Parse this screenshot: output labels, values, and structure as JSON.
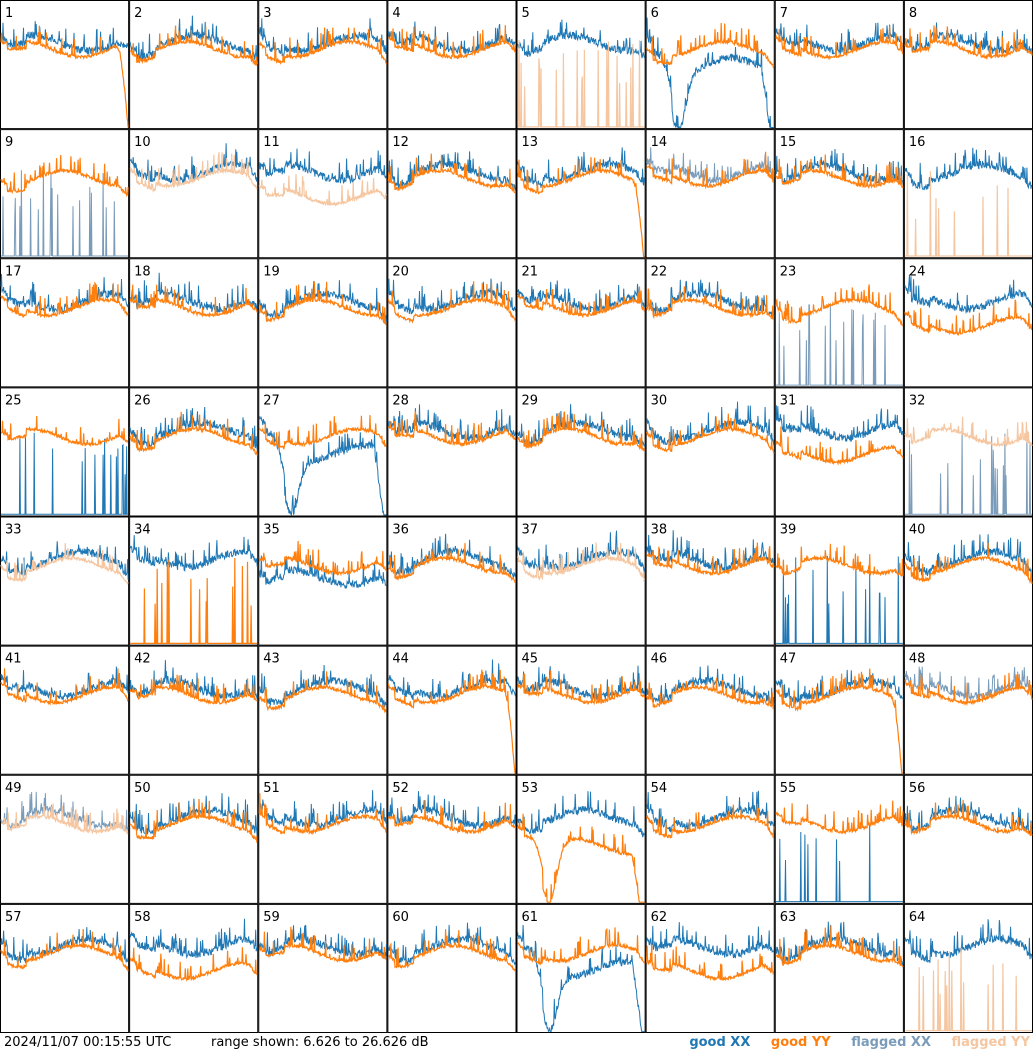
{
  "footer": {
    "timestamp": "2024/11/07 00:15:55 UTC",
    "range": "range shown: 6.626 to 26.626 dB"
  },
  "legend": [
    {
      "label": "good XX",
      "color": "#1f77b4"
    },
    {
      "label": "good YY",
      "color": "#ff7f0e"
    },
    {
      "label": "flagged XX",
      "color": "#7a9cba"
    },
    {
      "label": "flagged YY",
      "color": "#f5c6a0"
    }
  ],
  "chart_data": {
    "type": "line",
    "ylim": [
      6.626,
      26.626
    ],
    "grid": false,
    "legend_position": "bottom-right",
    "panels": [
      {
        "label": "1",
        "xx": "good",
        "yy": "good",
        "xx_shape": "normal",
        "yy_shape": "rolloff"
      },
      {
        "label": "2",
        "xx": "good",
        "yy": "good",
        "xx_shape": "normal",
        "yy_shape": "normal"
      },
      {
        "label": "3",
        "xx": "good",
        "yy": "good",
        "xx_shape": "normal",
        "yy_shape": "normal"
      },
      {
        "label": "4",
        "xx": "good",
        "yy": "good",
        "xx_shape": "normal",
        "yy_shape": "normal"
      },
      {
        "label": "5",
        "xx": "good",
        "yy": "flagged",
        "xx_shape": "normal",
        "yy_shape": "spiky"
      },
      {
        "label": "6",
        "xx": "good",
        "yy": "good",
        "xx_shape": "dip",
        "yy_shape": "normal"
      },
      {
        "label": "7",
        "xx": "good",
        "yy": "good",
        "xx_shape": "normal",
        "yy_shape": "normal"
      },
      {
        "label": "8",
        "xx": "good",
        "yy": "good",
        "xx_shape": "normal",
        "yy_shape": "normal"
      },
      {
        "label": "9",
        "xx": "flagged",
        "yy": "good",
        "xx_shape": "spiky",
        "yy_shape": "normal"
      },
      {
        "label": "10",
        "xx": "good",
        "yy": "flagged",
        "xx_shape": "normal",
        "yy_shape": "normal"
      },
      {
        "label": "11",
        "xx": "good",
        "yy": "flagged",
        "xx_shape": "normal",
        "yy_shape": "low"
      },
      {
        "label": "12",
        "xx": "good",
        "yy": "good",
        "xx_shape": "normal",
        "yy_shape": "normal"
      },
      {
        "label": "13",
        "xx": "good",
        "yy": "good",
        "xx_shape": "normal",
        "yy_shape": "rolloff"
      },
      {
        "label": "14",
        "xx": "flagged",
        "yy": "good",
        "xx_shape": "normal",
        "yy_shape": "normal"
      },
      {
        "label": "15",
        "xx": "good",
        "yy": "good",
        "xx_shape": "normal",
        "yy_shape": "normal"
      },
      {
        "label": "16",
        "xx": "good",
        "yy": "flagged",
        "xx_shape": "normal",
        "yy_shape": "spiky"
      },
      {
        "label": "17",
        "xx": "good",
        "yy": "good",
        "xx_shape": "normal",
        "yy_shape": "normal"
      },
      {
        "label": "18",
        "xx": "good",
        "yy": "good",
        "xx_shape": "normal",
        "yy_shape": "normal"
      },
      {
        "label": "19",
        "xx": "good",
        "yy": "good",
        "xx_shape": "normal",
        "yy_shape": "normal"
      },
      {
        "label": "20",
        "xx": "good",
        "yy": "good",
        "xx_shape": "normal",
        "yy_shape": "normal"
      },
      {
        "label": "21",
        "xx": "good",
        "yy": "good",
        "xx_shape": "normal",
        "yy_shape": "normal"
      },
      {
        "label": "22",
        "xx": "good",
        "yy": "good",
        "xx_shape": "normal",
        "yy_shape": "normal"
      },
      {
        "label": "23",
        "xx": "flagged",
        "yy": "good",
        "xx_shape": "spiky",
        "yy_shape": "normal"
      },
      {
        "label": "24",
        "xx": "good",
        "yy": "good",
        "xx_shape": "normal",
        "yy_shape": "low"
      },
      {
        "label": "25",
        "xx": "good",
        "yy": "good",
        "xx_shape": "spiky",
        "yy_shape": "normal"
      },
      {
        "label": "26",
        "xx": "good",
        "yy": "good",
        "xx_shape": "normal",
        "yy_shape": "normal"
      },
      {
        "label": "27",
        "xx": "good",
        "yy": "good",
        "xx_shape": "dip",
        "yy_shape": "normal"
      },
      {
        "label": "28",
        "xx": "good",
        "yy": "good",
        "xx_shape": "normal",
        "yy_shape": "normal"
      },
      {
        "label": "29",
        "xx": "good",
        "yy": "good",
        "xx_shape": "normal",
        "yy_shape": "normal"
      },
      {
        "label": "30",
        "xx": "good",
        "yy": "good",
        "xx_shape": "normal",
        "yy_shape": "normal"
      },
      {
        "label": "31",
        "xx": "good",
        "yy": "good",
        "xx_shape": "normal",
        "yy_shape": "low"
      },
      {
        "label": "32",
        "xx": "flagged",
        "yy": "flagged",
        "xx_shape": "spiky",
        "yy_shape": "normal"
      },
      {
        "label": "33",
        "xx": "good",
        "yy": "flagged",
        "xx_shape": "normal",
        "yy_shape": "normal"
      },
      {
        "label": "34",
        "xx": "good",
        "yy": "good",
        "xx_shape": "normal",
        "yy_shape": "spiky"
      },
      {
        "label": "35",
        "xx": "good",
        "yy": "good",
        "xx_shape": "low",
        "yy_shape": "normal"
      },
      {
        "label": "36",
        "xx": "good",
        "yy": "good",
        "xx_shape": "normal",
        "yy_shape": "normal"
      },
      {
        "label": "37",
        "xx": "good",
        "yy": "flagged",
        "xx_shape": "normal",
        "yy_shape": "normal"
      },
      {
        "label": "38",
        "xx": "good",
        "yy": "good",
        "xx_shape": "normal",
        "yy_shape": "normal"
      },
      {
        "label": "39",
        "xx": "good",
        "yy": "good",
        "xx_shape": "spiky",
        "yy_shape": "normal"
      },
      {
        "label": "40",
        "xx": "good",
        "yy": "good",
        "xx_shape": "normal",
        "yy_shape": "normal"
      },
      {
        "label": "41",
        "xx": "good",
        "yy": "good",
        "xx_shape": "normal",
        "yy_shape": "normal"
      },
      {
        "label": "42",
        "xx": "good",
        "yy": "good",
        "xx_shape": "normal",
        "yy_shape": "normal"
      },
      {
        "label": "43",
        "xx": "good",
        "yy": "good",
        "xx_shape": "normal",
        "yy_shape": "normal"
      },
      {
        "label": "44",
        "xx": "good",
        "yy": "good",
        "xx_shape": "normal",
        "yy_shape": "rolloff"
      },
      {
        "label": "45",
        "xx": "good",
        "yy": "good",
        "xx_shape": "normal",
        "yy_shape": "normal"
      },
      {
        "label": "46",
        "xx": "good",
        "yy": "good",
        "xx_shape": "normal",
        "yy_shape": "normal"
      },
      {
        "label": "47",
        "xx": "good",
        "yy": "good",
        "xx_shape": "normal",
        "yy_shape": "rolloff"
      },
      {
        "label": "48",
        "xx": "flagged",
        "yy": "good",
        "xx_shape": "normal",
        "yy_shape": "normal"
      },
      {
        "label": "49",
        "xx": "flagged",
        "yy": "flagged",
        "xx_shape": "normal",
        "yy_shape": "normal"
      },
      {
        "label": "50",
        "xx": "good",
        "yy": "good",
        "xx_shape": "normal",
        "yy_shape": "normal"
      },
      {
        "label": "51",
        "xx": "good",
        "yy": "good",
        "xx_shape": "normal",
        "yy_shape": "normal"
      },
      {
        "label": "52",
        "xx": "good",
        "yy": "good",
        "xx_shape": "normal",
        "yy_shape": "normal"
      },
      {
        "label": "53",
        "xx": "good",
        "yy": "good",
        "xx_shape": "normal",
        "yy_shape": "dip"
      },
      {
        "label": "54",
        "xx": "good",
        "yy": "good",
        "xx_shape": "normal",
        "yy_shape": "normal"
      },
      {
        "label": "55",
        "xx": "good",
        "yy": "good",
        "xx_shape": "spiky",
        "yy_shape": "normal"
      },
      {
        "label": "56",
        "xx": "good",
        "yy": "good",
        "xx_shape": "normal",
        "yy_shape": "normal"
      },
      {
        "label": "57",
        "xx": "good",
        "yy": "good",
        "xx_shape": "normal",
        "yy_shape": "normal"
      },
      {
        "label": "58",
        "xx": "good",
        "yy": "good",
        "xx_shape": "normal",
        "yy_shape": "low"
      },
      {
        "label": "59",
        "xx": "good",
        "yy": "good",
        "xx_shape": "normal",
        "yy_shape": "normal"
      },
      {
        "label": "60",
        "xx": "good",
        "yy": "good",
        "xx_shape": "normal",
        "yy_shape": "normal"
      },
      {
        "label": "61",
        "xx": "good",
        "yy": "good",
        "xx_shape": "dip",
        "yy_shape": "normal"
      },
      {
        "label": "62",
        "xx": "good",
        "yy": "good",
        "xx_shape": "normal",
        "yy_shape": "low"
      },
      {
        "label": "63",
        "xx": "good",
        "yy": "good",
        "xx_shape": "normal",
        "yy_shape": "normal"
      },
      {
        "label": "64",
        "xx": "good",
        "yy": "flagged",
        "xx_shape": "normal",
        "yy_shape": "spiky"
      }
    ]
  }
}
